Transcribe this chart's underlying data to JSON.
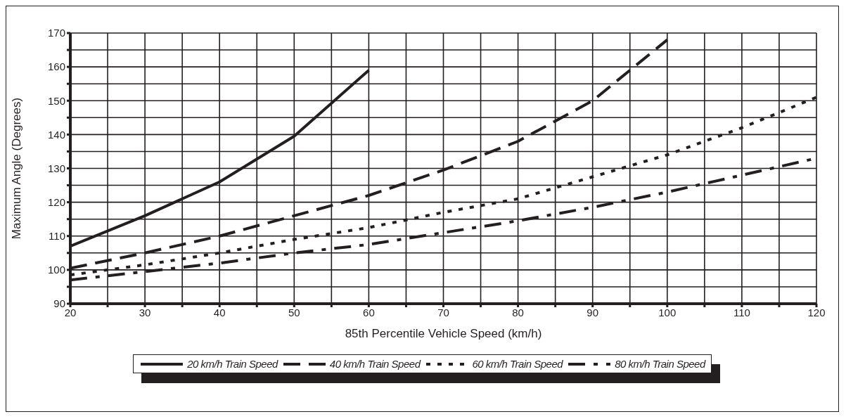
{
  "chart_data": {
    "type": "line",
    "xlabel": "85th Percentile Vehicle Speed (km/h)",
    "ylabel": "Maximum Angle (Degrees)",
    "xlim": [
      20,
      120
    ],
    "xticks": [
      20,
      {
        "value": 25,
        "label": null
      },
      30,
      {
        "value": 35,
        "label": null
      },
      40,
      {
        "value": 45,
        "label": null
      },
      50,
      {
        "value": 55,
        "label": null
      },
      60,
      {
        "value": 65,
        "label": null
      },
      70,
      {
        "value": 75,
        "label": null
      },
      80,
      {
        "value": 85,
        "label": null
      },
      90,
      {
        "value": 95,
        "label": null
      },
      100,
      {
        "value": 105,
        "label": null
      },
      110,
      {
        "value": 115,
        "label": null
      },
      120
    ],
    "ylim": [
      90,
      170
    ],
    "yticks": [
      90,
      {
        "value": 95,
        "label": null
      },
      100,
      {
        "value": 105,
        "label": null
      },
      110,
      {
        "value": 115,
        "label": null
      },
      120,
      {
        "value": 125,
        "label": null
      },
      130,
      {
        "value": 135,
        "label": null
      },
      140,
      {
        "value": 145,
        "label": null
      },
      150,
      {
        "value": 155,
        "label": null
      },
      160,
      {
        "value": 165,
        "label": null
      },
      170
    ],
    "grid": true,
    "legend": "bottom",
    "marker": "none",
    "series": [
      {
        "name": "20 km/h Train Speed",
        "color": "#231f20",
        "line_style": "solid",
        "x": [
          20,
          30,
          40,
          50,
          60
        ],
        "values": [
          107,
          116,
          126,
          139.5,
          159
        ]
      },
      {
        "name": "40 km/h Train Speed",
        "color": "#231f20",
        "line_style": "dashed",
        "x": [
          20,
          30,
          40,
          50,
          60,
          70,
          80,
          90,
          100
        ],
        "values": [
          100.5,
          105,
          110,
          116,
          122,
          129.5,
          138,
          150,
          168
        ]
      },
      {
        "name": "60 km/h Train Speed",
        "color": "#231f20",
        "line_style": "dotted",
        "x": [
          20,
          30,
          40,
          50,
          60,
          70,
          80,
          90,
          100,
          110,
          120
        ],
        "values": [
          98.5,
          101.5,
          105,
          109,
          112.5,
          117,
          121,
          127.5,
          134,
          142,
          151
        ]
      },
      {
        "name": "80 km/h Train Speed",
        "color": "#231f20",
        "line_style": "dashed",
        "x": [
          20,
          30,
          40,
          50,
          60,
          70,
          80,
          90,
          100,
          110,
          120
        ],
        "values": [
          97,
          99.5,
          102,
          105,
          107.5,
          111,
          114.5,
          118.5,
          123,
          128,
          133
        ]
      }
    ]
  }
}
